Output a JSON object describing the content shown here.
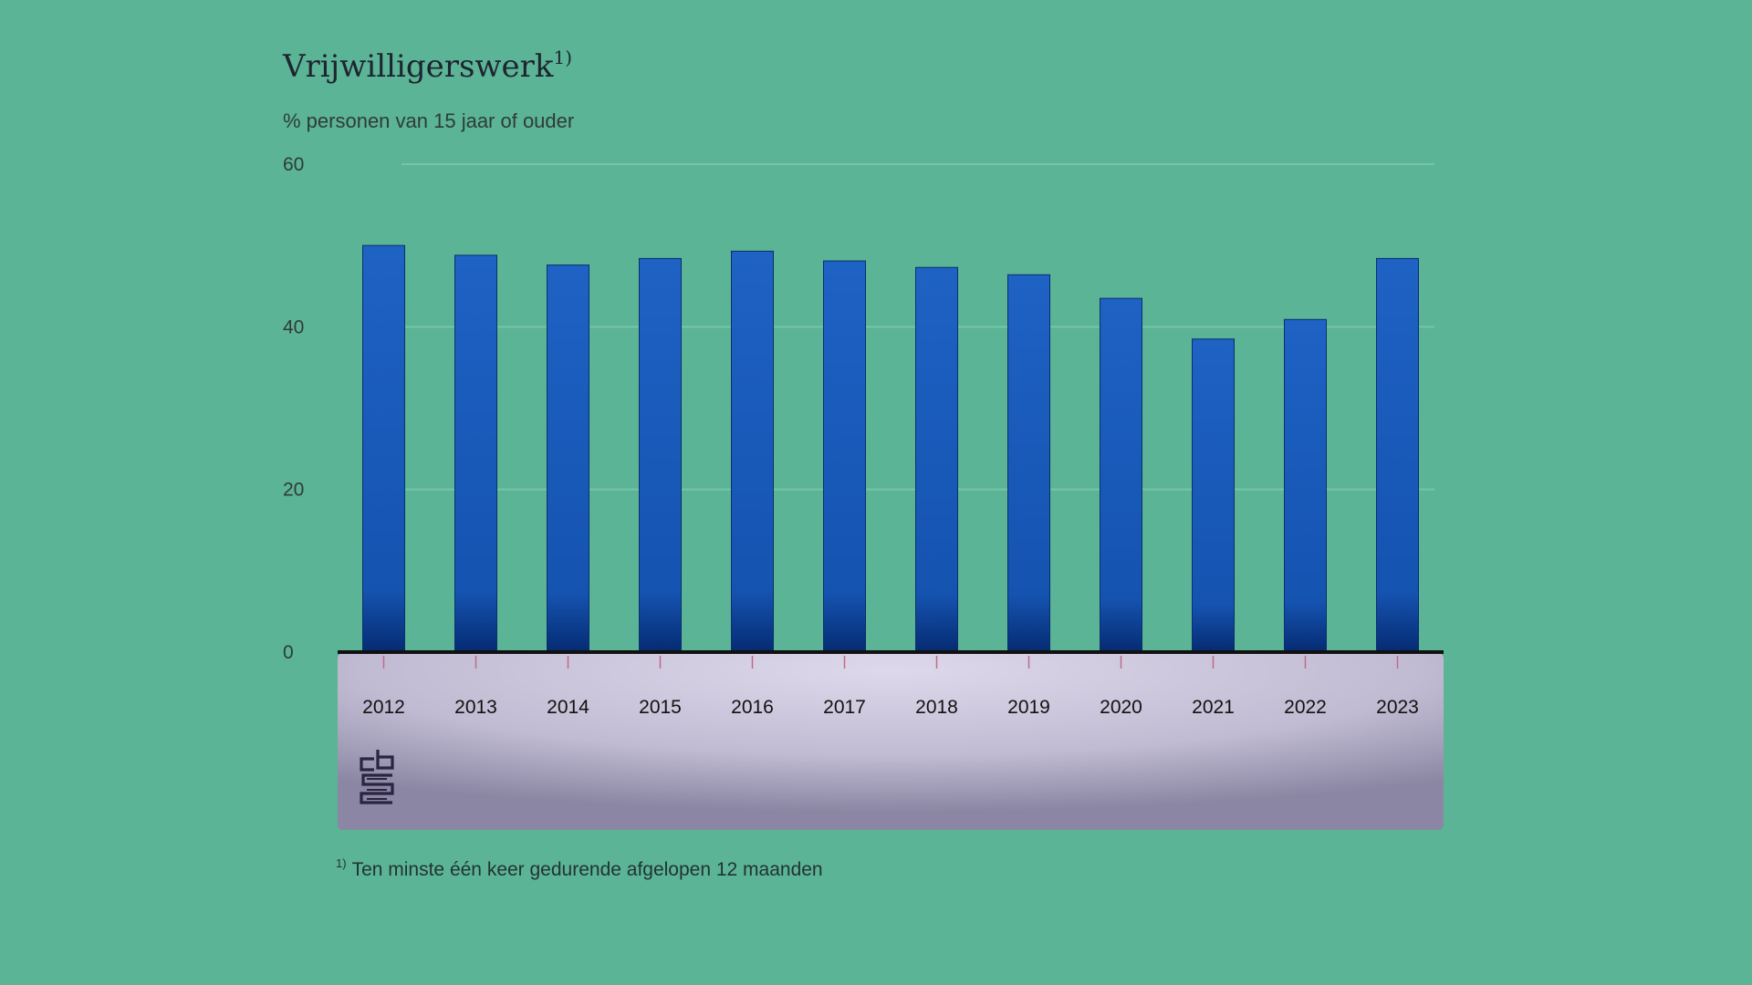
{
  "chart_data": {
    "type": "bar",
    "title": "Vrijwilligerswerk",
    "title_superscript": "1)",
    "subtitle": "% personen van 15 jaar of ouder",
    "categories": [
      "2012",
      "2013",
      "2014",
      "2015",
      "2016",
      "2017",
      "2018",
      "2019",
      "2020",
      "2021",
      "2022",
      "2023"
    ],
    "values": [
      50,
      48.8,
      47.6,
      48.4,
      49.3,
      48.1,
      47.3,
      46.4,
      43.5,
      38.5,
      40.9,
      48.4
    ],
    "ylim": [
      0,
      60
    ],
    "yticks": [
      0,
      20,
      40,
      60
    ],
    "xlabel": "",
    "ylabel": "",
    "grid": true,
    "footnote_marker": "1)",
    "footnote": "Ten minste één keer gedurende afgelopen 12 maanden",
    "logo_text": "cbs"
  },
  "colors": {
    "background": "#5bb495",
    "bar_top": "#1a58b0",
    "bar_bottom": "#062f7a",
    "axis": "#111111",
    "gridline": "#8fd3b8",
    "xaxis_band": "#c3bfd6"
  }
}
